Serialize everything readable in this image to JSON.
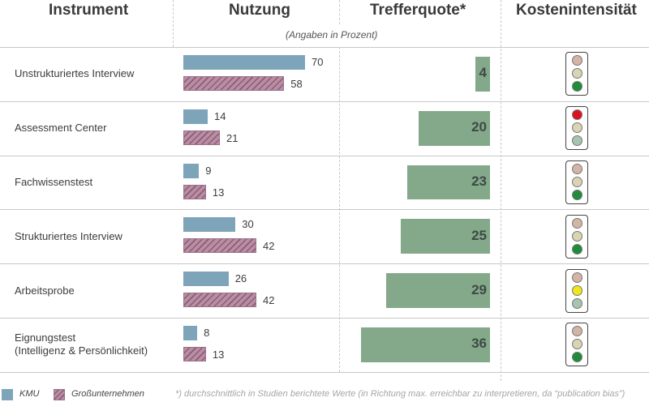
{
  "headers": {
    "instrument": "Instrument",
    "nutzung": "Nutzung",
    "trefferquote": "Trefferquote*",
    "kosten": "Kostenintensität",
    "subtitle": "(Angaben in Prozent)"
  },
  "chart_data": {
    "type": "bar",
    "categories": [
      "Unstrukturiertes Interview",
      "Assessment Center",
      "Fachwissenstest",
      "Strukturiertes Interview",
      "Arbeitsprobe",
      "Eignungstest\n(Intelligenz & Persönlichkeit)"
    ],
    "series": [
      {
        "name": "KMU",
        "values": [
          70,
          14,
          9,
          30,
          26,
          8
        ],
        "color": "#7ea4ba"
      },
      {
        "name": "Großunternehmen",
        "values": [
          58,
          21,
          13,
          42,
          42,
          13
        ],
        "color": "#a87892"
      }
    ],
    "trefferquote": [
      4,
      20,
      23,
      25,
      29,
      36
    ],
    "kostenintensitaet": [
      "green",
      "red",
      "green",
      "green",
      "yellow",
      "green"
    ],
    "lamp_colors": {
      "red": "#d9141e",
      "yellow": "#f0e61e",
      "green": "#1e8c3c",
      "off_red": "#d4b4a6",
      "off_yellow": "#d8d4b4",
      "off_green": "#a8c4b0"
    }
  },
  "legend": {
    "kmu": "KMU",
    "gu": "Großunternehmen"
  },
  "footnote": "*) durchschnittlich in Studien berichtete Werte (in Richtung max. erreichbar zu interpretieren, da “publication bias”)"
}
